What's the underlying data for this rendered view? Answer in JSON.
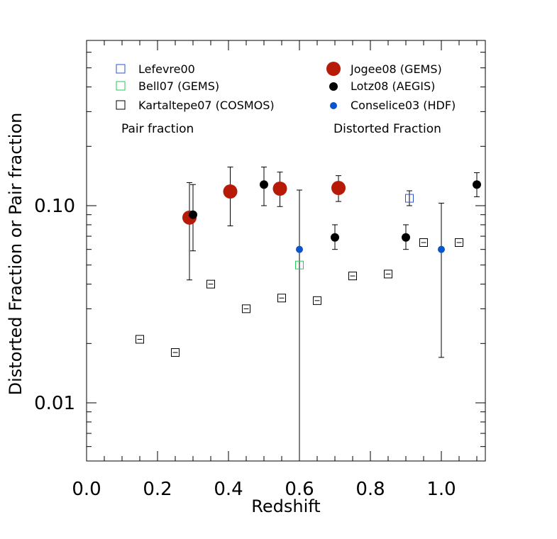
{
  "chart_data": {
    "type": "scatter",
    "xlabel": "Redshift",
    "ylabel": "Distorted Fraction or Pair fraction",
    "xlim": [
      0.0,
      1.13
    ],
    "ylim": [
      0.005,
      0.7
    ],
    "yscale": "log",
    "grid": false,
    "x_ticks": [
      {
        "value": 0.0,
        "label": "0.0"
      },
      {
        "value": 0.2,
        "label": "0.2"
      },
      {
        "value": 0.4,
        "label": "0.4"
      },
      {
        "value": 0.6,
        "label": "0.6"
      },
      {
        "value": 0.8,
        "label": "0.8"
      },
      {
        "value": 1.0,
        "label": "1.0"
      }
    ],
    "y_ticks": [
      {
        "value": 0.01,
        "label": "0.01"
      },
      {
        "value": 0.1,
        "label": "0.10"
      }
    ],
    "legend_headers": {
      "left": "Pair fraction",
      "right": "Distorted Fraction"
    },
    "series": [
      {
        "name": "Lefevre00",
        "marker": "open-square",
        "color": "#2a55c8",
        "column": "left",
        "points": [
          {
            "x": 0.91,
            "y": 0.109,
            "ylo": 0.1,
            "yhi": 0.119
          }
        ]
      },
      {
        "name": "Bell07 (GEMS)",
        "marker": "open-square",
        "color": "#22cc55",
        "column": "left",
        "points": [
          {
            "x": 0.6,
            "y": 0.05
          }
        ]
      },
      {
        "name": "Kartaltepe07 (COSMOS)",
        "marker": "open-square-bar",
        "color": "#000000",
        "column": "left",
        "points": [
          {
            "x": 0.15,
            "y": 0.021
          },
          {
            "x": 0.25,
            "y": 0.018
          },
          {
            "x": 0.35,
            "y": 0.04
          },
          {
            "x": 0.45,
            "y": 0.03
          },
          {
            "x": 0.55,
            "y": 0.034
          },
          {
            "x": 0.65,
            "y": 0.033
          },
          {
            "x": 0.75,
            "y": 0.044
          },
          {
            "x": 0.85,
            "y": 0.045
          },
          {
            "x": 0.95,
            "y": 0.065
          },
          {
            "x": 1.05,
            "y": 0.065
          }
        ]
      },
      {
        "name": "Jogee08 (GEMS)",
        "marker": "big-filled-circle",
        "color": "#b81a08",
        "column": "right",
        "points": [
          {
            "x": 0.29,
            "y": 0.087,
            "ylo": 0.042,
            "yhi": 0.131
          },
          {
            "x": 0.405,
            "y": 0.118,
            "ylo": 0.079,
            "yhi": 0.157
          },
          {
            "x": 0.545,
            "y": 0.122,
            "ylo": 0.099,
            "yhi": 0.148
          },
          {
            "x": 0.71,
            "y": 0.123,
            "ylo": 0.105,
            "yhi": 0.142
          }
        ]
      },
      {
        "name": "Lotz08 (AEGIS)",
        "marker": "filled-circle",
        "color": "#000000",
        "column": "right",
        "points": [
          {
            "x": 0.3,
            "y": 0.09,
            "ylo": 0.059,
            "yhi": 0.128
          },
          {
            "x": 0.5,
            "y": 0.128,
            "ylo": 0.1,
            "yhi": 0.157
          },
          {
            "x": 0.7,
            "y": 0.069,
            "ylo": 0.06,
            "yhi": 0.08
          },
          {
            "x": 0.9,
            "y": 0.069,
            "ylo": 0.06,
            "yhi": 0.08
          },
          {
            "x": 1.1,
            "y": 0.128,
            "ylo": 0.111,
            "yhi": 0.147
          }
        ]
      },
      {
        "name": "Conselice03 (HDF)",
        "marker": "small-filled-circle",
        "color": "#0a55cc",
        "column": "right",
        "points": [
          {
            "x": 0.6,
            "y": 0.06,
            "ylo": 0.005,
            "yhi": 0.12
          },
          {
            "x": 1.0,
            "y": 0.06,
            "ylo": 0.017,
            "yhi": 0.103
          }
        ]
      }
    ]
  }
}
